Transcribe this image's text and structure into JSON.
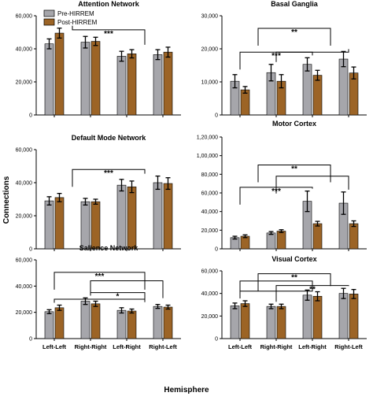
{
  "ylabel": "Connections",
  "xlabel": "Hemisphere",
  "legend": [
    {
      "name": "Pre-HIRREM",
      "color": "#a6a6ab"
    },
    {
      "name": "Post-HIRREM",
      "color": "#9c6426"
    }
  ],
  "chart_data": [
    {
      "type": "bar",
      "title": "Attention Network",
      "categories": [
        "Left-Left",
        "Right-Right",
        "Left-Right",
        "Right-Left"
      ],
      "ylim": [
        0,
        60000
      ],
      "yticks": [
        "0",
        "20,000",
        "40,000",
        "60,000"
      ],
      "xtick_labels_shown": false,
      "series": [
        {
          "name": "Pre-HIRREM",
          "values": [
            43000,
            44000,
            35500,
            36500
          ],
          "errors": [
            3000,
            3500,
            3000,
            3000
          ]
        },
        {
          "name": "Post-HIRREM",
          "values": [
            49500,
            44500,
            37000,
            38000
          ],
          "errors": [
            3000,
            2500,
            2500,
            3000
          ]
        }
      ],
      "brackets": [
        {
          "left": [
            0,
            1
          ],
          "right": [
            2,
            3
          ],
          "y": 51500,
          "label": "***"
        }
      ]
    },
    {
      "type": "bar",
      "title": "Basal Ganglia",
      "categories": [
        "Left-Left",
        "Right-Right",
        "Left-Right",
        "Right-Left"
      ],
      "ylim": [
        0,
        30000
      ],
      "yticks": [
        "0",
        "10,000",
        "20,000",
        "30,000"
      ],
      "xtick_labels_shown": false,
      "series": [
        {
          "name": "Pre-HIRREM",
          "values": [
            10200,
            12800,
            15300,
            16900
          ],
          "errors": [
            2000,
            2500,
            2000,
            2300
          ]
        },
        {
          "name": "Post-HIRREM",
          "values": [
            7600,
            10200,
            12000,
            12700
          ],
          "errors": [
            1000,
            2000,
            1500,
            1800
          ]
        }
      ],
      "brackets": [
        {
          "left": [
            0,
            1
          ],
          "right": [
            2,
            3
          ],
          "y": 26200,
          "label": "**"
        },
        {
          "left": [
            0
          ],
          "right": [
            2
          ],
          "y": 19000,
          "label": "***"
        },
        {
          "left": [
            1
          ],
          "right": [
            3
          ],
          "y": 19000,
          "label": ""
        }
      ]
    },
    {
      "type": "bar",
      "title": "Default Mode Network",
      "categories": [
        "Left-Left",
        "Right-Right",
        "Left-Right",
        "Right-Left"
      ],
      "ylim": [
        0,
        60000
      ],
      "yticks": [
        "0",
        "20,000",
        "40,000",
        "60,000"
      ],
      "xtick_labels_shown": false,
      "series": [
        {
          "name": "Pre-HIRREM",
          "values": [
            29000,
            28500,
            38500,
            40000
          ],
          "errors": [
            2500,
            2000,
            3500,
            4000
          ]
        },
        {
          "name": "Post-HIRREM",
          "values": [
            31000,
            28500,
            37500,
            39500
          ],
          "errors": [
            2500,
            1500,
            3500,
            3500
          ]
        }
      ],
      "brackets": [
        {
          "left": [
            0,
            1
          ],
          "right": [
            2,
            3
          ],
          "y": 48000,
          "label": "***"
        }
      ]
    },
    {
      "type": "bar",
      "title": "Motor Cortex",
      "categories": [
        "Left-Left",
        "Right-Right",
        "Left-Right",
        "Right-Left"
      ],
      "ylim": [
        0,
        120000
      ],
      "yticks": [
        "0",
        "20,000",
        "40,000",
        "60,000",
        "80,000",
        "1,00,000",
        "1,20,000"
      ],
      "xtick_labels_shown": false,
      "series": [
        {
          "name": "Pre-HIRREM",
          "values": [
            12000,
            17000,
            51000,
            49000
          ],
          "errors": [
            1500,
            1500,
            11000,
            12000
          ]
        },
        {
          "name": "Post-HIRREM",
          "values": [
            13500,
            19000,
            27000,
            27000
          ],
          "errors": [
            1500,
            1500,
            2500,
            3000
          ]
        }
      ],
      "brackets": [
        {
          "left": [
            0,
            1
          ],
          "right": [
            2,
            3
          ],
          "y": 90000,
          "label": "**"
        },
        {
          "left": [
            1
          ],
          "right": [
            3
          ],
          "y": 78000,
          "label": ""
        },
        {
          "left": [
            0
          ],
          "right": [
            2
          ],
          "y": 66000,
          "label": "***"
        }
      ]
    },
    {
      "type": "bar",
      "title": "Salience Network",
      "categories": [
        "Left-Left",
        "Right-Right",
        "Left-Right",
        "Right-Left"
      ],
      "ylim": [
        0,
        60000
      ],
      "yticks": [
        "0",
        "20,000",
        "40,000",
        "60,000"
      ],
      "xtick_labels_shown": true,
      "series": [
        {
          "name": "Pre-HIRREM",
          "values": [
            20500,
            28500,
            21500,
            24500
          ],
          "errors": [
            1500,
            2500,
            2000,
            1500
          ]
        },
        {
          "name": "Post-HIRREM",
          "values": [
            23500,
            26500,
            21000,
            24000
          ],
          "errors": [
            2000,
            2000,
            1500,
            1500
          ]
        }
      ],
      "brackets": [
        {
          "left": [
            0
          ],
          "right": [
            2,
            3
          ],
          "y": 50500,
          "label": "***"
        },
        {
          "left": [
            1
          ],
          "right": [
            3
          ],
          "y": 44000,
          "label": ""
        },
        {
          "left": [
            1
          ],
          "right": [
            2,
            3
          ],
          "y": 35000,
          "label": "*"
        },
        {
          "left": [
            0
          ],
          "right": [
            2,
            3
          ],
          "y": 30000,
          "label": ""
        }
      ]
    },
    {
      "type": "bar",
      "title": "Visual Cortex",
      "categories": [
        "Left-Left",
        "Right-Right",
        "Left-Right",
        "Right-Left"
      ],
      "ylim": [
        0,
        60000
      ],
      "yticks": [
        "0",
        "20,000",
        "40,000",
        "60,000"
      ],
      "xtick_labels_shown": true,
      "series": [
        {
          "name": "Pre-HIRREM",
          "values": [
            29000,
            28500,
            38500,
            40000
          ],
          "errors": [
            2500,
            2000,
            4500,
            4500
          ]
        },
        {
          "name": "Post-HIRREM",
          "values": [
            31000,
            28500,
            37500,
            39500
          ],
          "errors": [
            2500,
            2000,
            4000,
            4000
          ]
        }
      ],
      "brackets": [
        {
          "left": [
            0,
            1
          ],
          "right": [
            2,
            3
          ],
          "y": 57500,
          "label": "**"
        },
        {
          "left": [
            0
          ],
          "right": [
            2
          ],
          "y": 51000,
          "label": ""
        },
        {
          "left": [
            1
          ],
          "right": [
            3
          ],
          "y": 47000,
          "label": "**"
        },
        {
          "left": [
            0
          ],
          "right": [
            2
          ],
          "y": 42000,
          "label": ""
        }
      ]
    }
  ]
}
